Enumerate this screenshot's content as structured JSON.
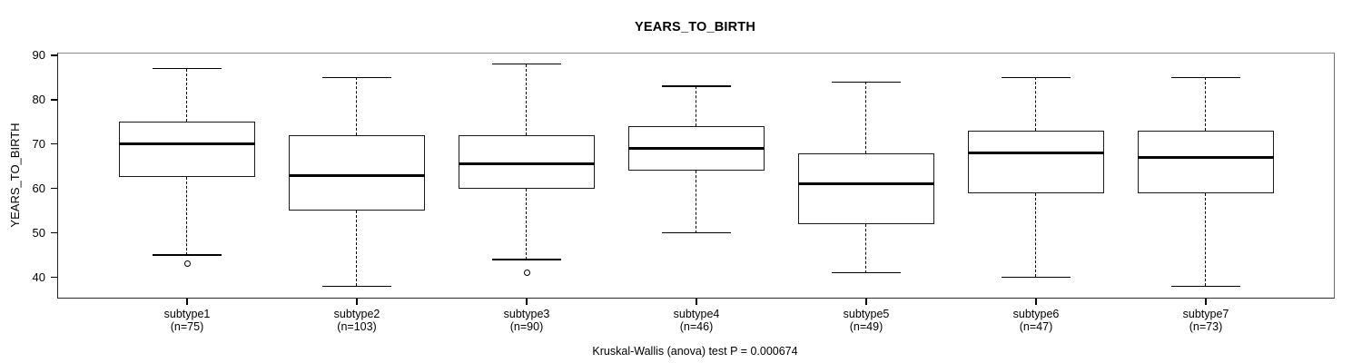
{
  "title": "YEARS_TO_BIRTH",
  "ylabel": "YEARS_TO_BIRTH",
  "footer": "Kruskal-Wallis (anova) test P = 0.000674",
  "colors": {
    "background": "#ffffff",
    "line": "#000000",
    "frame": "#6f6f6f",
    "text": "#000000"
  },
  "chart_data": {
    "type": "boxplot",
    "title": "YEARS_TO_BIRTH",
    "xlabel": "",
    "ylabel": "YEARS_TO_BIRTH",
    "yticks": [
      40,
      50,
      60,
      70,
      80,
      90
    ],
    "ylim": [
      35.4,
      90.4
    ],
    "grid": "off",
    "footer_annotation": "Kruskal-Wallis (anova) test P = 0.000674",
    "groups": [
      {
        "label": "subtype1",
        "n": 75,
        "n_label": "(n=75)",
        "whisker_low": 45,
        "q1": 62.5,
        "median": 70,
        "q3": 75,
        "whisker_high": 87,
        "outliers": [
          43
        ]
      },
      {
        "label": "subtype2",
        "n": 103,
        "n_label": "(n=103)",
        "whisker_low": 38,
        "q1": 55,
        "median": 63,
        "q3": 72,
        "whisker_high": 85,
        "outliers": []
      },
      {
        "label": "subtype3",
        "n": 90,
        "n_label": "(n=90)",
        "whisker_low": 44,
        "q1": 60,
        "median": 65.5,
        "q3": 72,
        "whisker_high": 88,
        "outliers": [
          41
        ]
      },
      {
        "label": "subtype4",
        "n": 46,
        "n_label": "(n=46)",
        "whisker_low": 50,
        "q1": 64,
        "median": 69,
        "q3": 74,
        "whisker_high": 83,
        "outliers": []
      },
      {
        "label": "subtype5",
        "n": 49,
        "n_label": "(n=49)",
        "whisker_low": 41,
        "q1": 52,
        "median": 61,
        "q3": 68,
        "whisker_high": 84,
        "outliers": []
      },
      {
        "label": "subtype6",
        "n": 47,
        "n_label": "(n=47)",
        "whisker_low": 40,
        "q1": 59,
        "median": 68,
        "q3": 73,
        "whisker_high": 85,
        "outliers": []
      },
      {
        "label": "subtype7",
        "n": 73,
        "n_label": "(n=73)",
        "whisker_low": 38,
        "q1": 59,
        "median": 67,
        "q3": 73,
        "whisker_high": 85,
        "outliers": []
      }
    ]
  }
}
